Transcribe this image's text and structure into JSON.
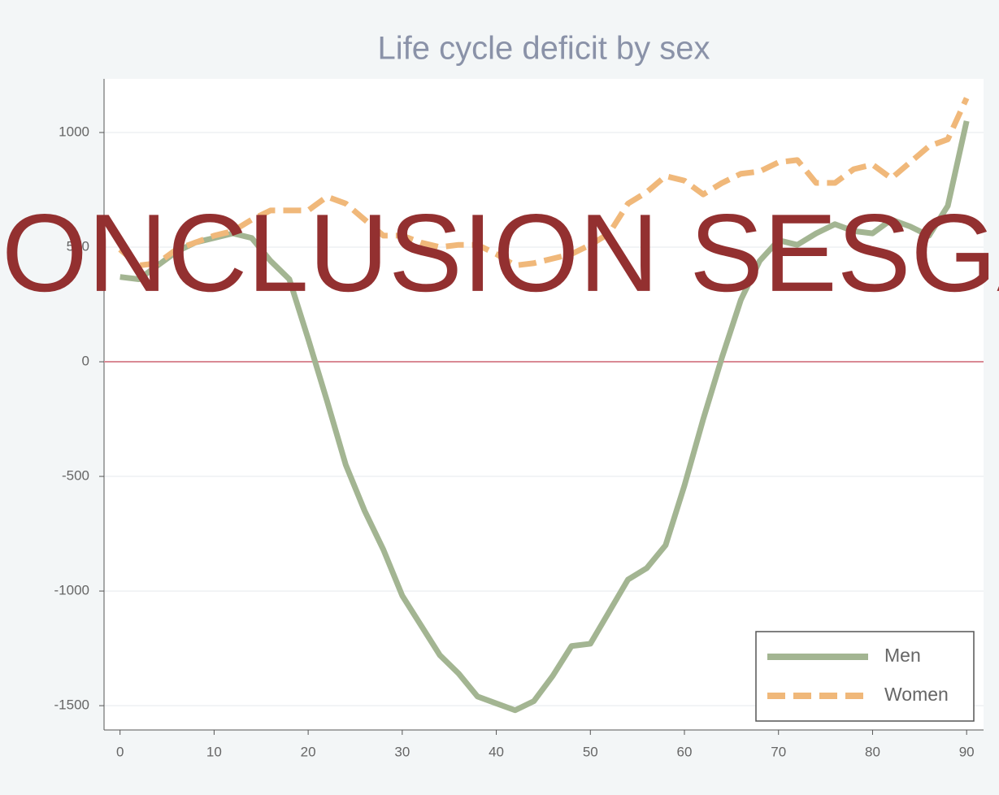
{
  "chart_data": {
    "type": "line",
    "title": "Life cycle deficit by sex",
    "annotation": "ONCLUSION SESGA",
    "x": [
      0,
      2,
      4,
      6,
      8,
      10,
      12,
      14,
      16,
      18,
      20,
      22,
      24,
      26,
      28,
      30,
      32,
      34,
      36,
      38,
      40,
      42,
      44,
      46,
      48,
      50,
      52,
      54,
      56,
      58,
      60,
      62,
      64,
      66,
      68,
      70,
      72,
      74,
      76,
      78,
      80,
      82,
      84,
      86,
      88,
      90
    ],
    "series": [
      {
        "name": "Men",
        "color": "#a3b592",
        "style": "solid",
        "values": [
          370,
          360,
          420,
          480,
          520,
          540,
          560,
          540,
          440,
          360,
          100,
          -170,
          -450,
          -650,
          -820,
          -1020,
          -1150,
          -1280,
          -1360,
          -1460,
          -1490,
          -1520,
          -1480,
          -1370,
          -1240,
          -1230,
          -1090,
          -950,
          -900,
          -800,
          -540,
          -250,
          20,
          270,
          440,
          530,
          510,
          560,
          600,
          570,
          560,
          620,
          590,
          550,
          680,
          1050
        ]
      },
      {
        "name": "Women",
        "color": "#f0b87a",
        "style": "dashed",
        "values": [
          490,
          420,
          430,
          490,
          520,
          550,
          570,
          620,
          660,
          660,
          660,
          720,
          690,
          620,
          550,
          550,
          520,
          500,
          510,
          510,
          470,
          420,
          430,
          450,
          470,
          510,
          560,
          690,
          740,
          810,
          790,
          730,
          780,
          820,
          830,
          870,
          880,
          780,
          780,
          840,
          860,
          800,
          870,
          940,
          970,
          1150
        ]
      }
    ],
    "xlim": [
      -1.7,
      91.8
    ],
    "xticks": [
      0,
      10,
      20,
      30,
      40,
      50,
      60,
      70,
      80,
      90
    ],
    "ylim": [
      -1606,
      1234
    ],
    "yticks": [
      -1500,
      -1000,
      -500,
      0,
      500,
      1000
    ],
    "grid": true,
    "reference_line": {
      "value": 0,
      "color": "#d98a95"
    },
    "legend": "lower right"
  }
}
